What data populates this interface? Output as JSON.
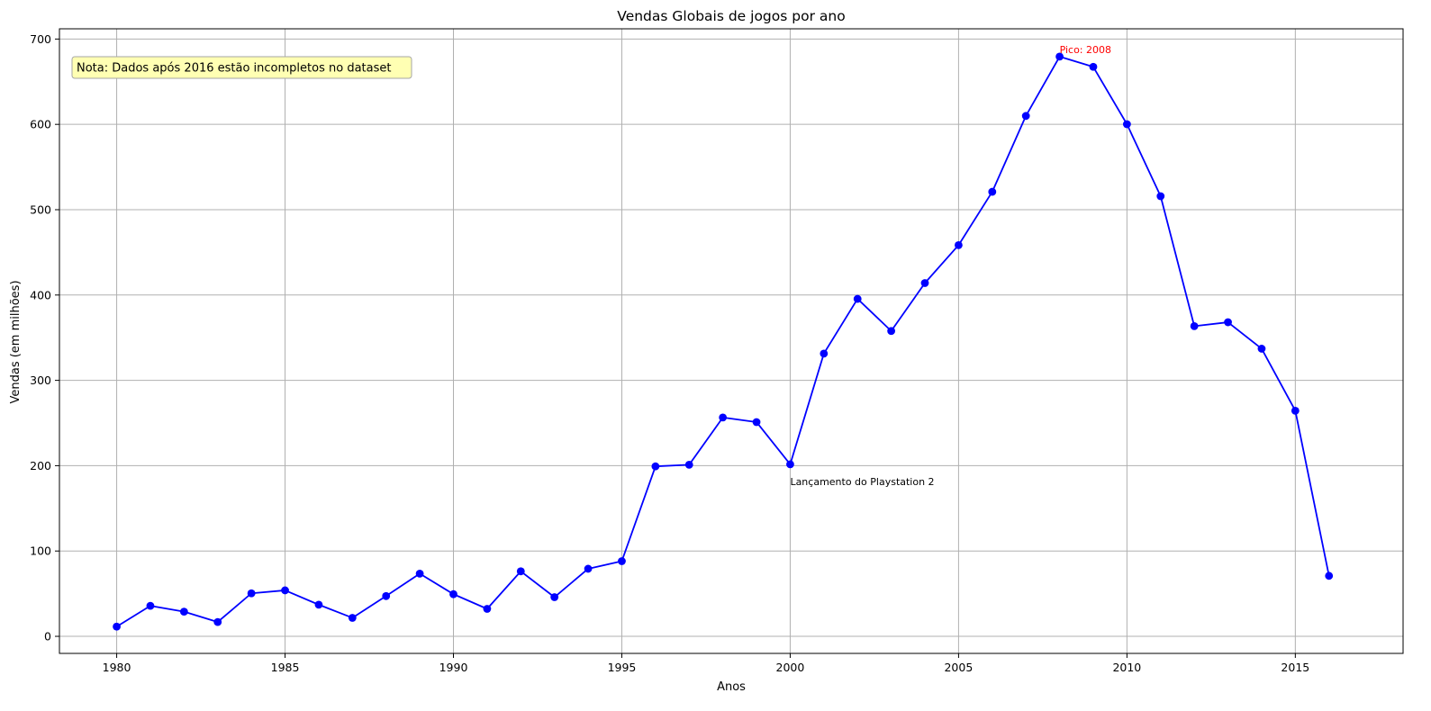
{
  "chart_data": {
    "type": "line",
    "title": "Vendas Globais de jogos por ano",
    "xlabel": "Anos",
    "ylabel": "Vendas (em milhões)",
    "xlim": [
      1978.3,
      2018.2
    ],
    "ylim": [
      -20,
      712
    ],
    "x_ticks": [
      1980,
      1985,
      1990,
      1995,
      2000,
      2005,
      2010,
      2015
    ],
    "y_ticks": [
      0,
      100,
      200,
      300,
      400,
      500,
      600,
      700
    ],
    "grid": true,
    "series": [
      {
        "color": "#0000ff",
        "marker": "circle",
        "x": [
          1980,
          1981,
          1982,
          1983,
          1984,
          1985,
          1986,
          1987,
          1988,
          1989,
          1990,
          1991,
          1992,
          1993,
          1994,
          1995,
          1996,
          1997,
          1998,
          1999,
          2000,
          2001,
          2002,
          2003,
          2004,
          2005,
          2006,
          2007,
          2008,
          2009,
          2010,
          2011,
          2012,
          2013,
          2014,
          2015,
          2016
        ],
        "values": [
          11.4,
          35.8,
          28.9,
          16.8,
          50.4,
          53.9,
          37.1,
          21.7,
          47.2,
          73.5,
          49.4,
          32.2,
          76.2,
          45.9,
          79.2,
          88.1,
          199.2,
          201.1,
          256.5,
          251.1,
          201.6,
          331.4,
          395.5,
          357.9,
          414.0,
          458.5,
          521.0,
          609.9,
          679.4,
          667.4,
          600.2,
          515.8,
          363.5,
          368.1,
          337.1,
          264.4,
          70.9
        ]
      }
    ],
    "annotations": [
      {
        "text": "Pico: 2008",
        "x": 2008,
        "y": 688,
        "color": "#ff0000"
      },
      {
        "text": "Lançamento do Playstation 2",
        "x": 2000,
        "y": 181.6,
        "color": "#000000"
      }
    ],
    "note": "Nota: Dados após 2016 estão incompletos no dataset",
    "note_style": {
      "background": "#ffffb3",
      "border": "#a6a6a6"
    }
  }
}
